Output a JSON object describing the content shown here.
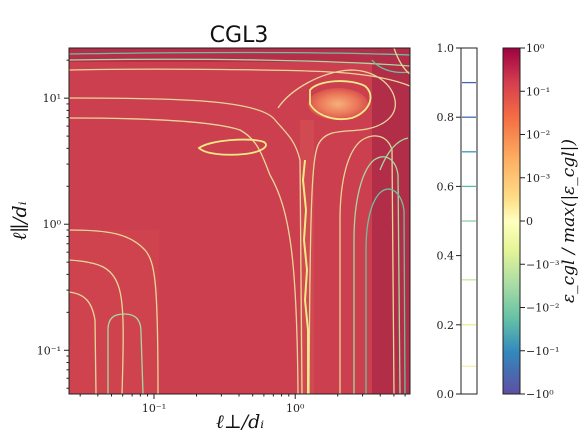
{
  "chart_data": {
    "type": "heatmap",
    "title": "CGL3",
    "xlabel": "ℓ⊥/dᵢ",
    "ylabel": "ℓ∥/dᵢ",
    "x_scale": "log",
    "y_scale": "log",
    "xlim": [
      0.025,
      6.5
    ],
    "ylim": [
      0.045,
      25
    ],
    "x_ticks": [
      {
        "value": 0.1,
        "label": "10⁻¹"
      },
      {
        "value": 1,
        "label": "10⁰"
      }
    ],
    "y_ticks": [
      {
        "value": 0.1,
        "label": "10⁻¹"
      },
      {
        "value": 1,
        "label": "10⁰"
      },
      {
        "value": 10,
        "label": "10¹"
      }
    ],
    "background_color": "#c93a4c",
    "contour_colors": [
      "#e8d79a",
      "#f2ea86",
      "#a6d9a0",
      "#6fbf9f"
    ],
    "histogram_bar": {
      "range": [
        0.0,
        1.0
      ],
      "ticks": [
        {
          "value": 0.0,
          "label": "0.0"
        },
        {
          "value": 0.2,
          "label": "0.2"
        },
        {
          "value": 0.4,
          "label": "0.4"
        },
        {
          "value": 0.6,
          "label": "0.6"
        },
        {
          "value": 0.8,
          "label": "0.8"
        },
        {
          "value": 1.0,
          "label": "1.0"
        }
      ],
      "levels": [
        {
          "value": 0.08,
          "color": "#f5f0b0"
        },
        {
          "value": 0.2,
          "color": "#e8ee9a"
        },
        {
          "value": 0.33,
          "color": "#c8e69c"
        },
        {
          "value": 0.5,
          "color": "#8fd0a4"
        },
        {
          "value": 0.6,
          "color": "#5fb9a8"
        },
        {
          "value": 0.7,
          "color": "#3d95b8"
        },
        {
          "value": 0.8,
          "color": "#3e6fb0"
        },
        {
          "value": 0.9,
          "color": "#4863ab"
        }
      ]
    },
    "colorbar": {
      "label": "ε_cgl / max(|ε_cgl|)",
      "ticks": [
        {
          "value": 1,
          "label": "10⁰"
        },
        {
          "value": 0.1,
          "label": "10⁻¹"
        },
        {
          "value": 0.01,
          "label": "10⁻²"
        },
        {
          "value": 0.001,
          "label": "10⁻³"
        },
        {
          "value": 0,
          "label": "0"
        },
        {
          "value": -0.001,
          "label": "−10⁻³"
        },
        {
          "value": -0.01,
          "label": "−10⁻²"
        },
        {
          "value": -0.1,
          "label": "−10⁻¹"
        },
        {
          "value": -1,
          "label": "−10⁰"
        }
      ],
      "colors": [
        "#9e0142",
        "#d53e4f",
        "#f46d43",
        "#fdae61",
        "#fee08b",
        "#ffffbf",
        "#e6f598",
        "#abdda4",
        "#66c2a5",
        "#3288bd",
        "#5e4fa2"
      ]
    }
  }
}
